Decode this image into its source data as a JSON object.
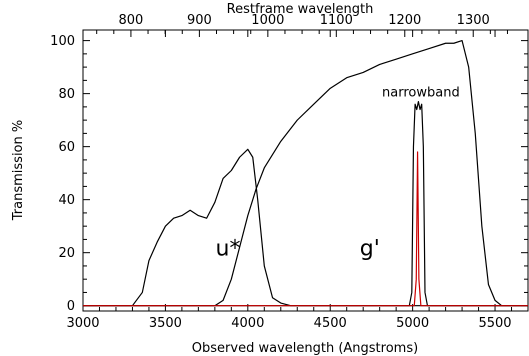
{
  "chart_data": {
    "type": "line",
    "xlabel": "Observed wavelength (Angstroms)",
    "ylabel": "Transmission %",
    "top_axis_label": "Restframe wavelength",
    "xlim": [
      3000,
      5700
    ],
    "ylim": [
      -2,
      104
    ],
    "top_xlim": [
      730,
      1380
    ],
    "x_ticks": [
      3000,
      3500,
      4000,
      4500,
      5000,
      5500
    ],
    "y_ticks": [
      0,
      20,
      40,
      60,
      80,
      100
    ],
    "top_ticks": [
      800,
      900,
      1000,
      1100,
      1200,
      1300
    ],
    "grid": false,
    "annotations": [
      {
        "text": "u*",
        "x": 3880,
        "y": 19
      },
      {
        "text": "g'",
        "x": 4740,
        "y": 19
      },
      {
        "text": "narrowband",
        "x": 5050,
        "y": 79
      }
    ],
    "series": [
      {
        "id": "u",
        "color": "#000000",
        "x": [
          3000,
          3300,
          3360,
          3400,
          3450,
          3500,
          3550,
          3600,
          3650,
          3700,
          3750,
          3800,
          3850,
          3900,
          3950,
          4000,
          4030,
          4060,
          4100,
          4150,
          4200,
          4260,
          4300,
          5700
        ],
        "y": [
          0,
          0,
          5,
          17,
          24,
          30,
          33,
          34,
          36,
          34,
          33,
          39,
          48,
          51,
          56,
          59,
          56,
          40,
          15,
          3,
          1,
          0,
          0,
          0
        ]
      },
      {
        "id": "g",
        "color": "#000000",
        "x": [
          3000,
          3800,
          3850,
          3900,
          3950,
          4000,
          4050,
          4100,
          4200,
          4300,
          4400,
          4500,
          4600,
          4700,
          4800,
          4900,
          5000,
          5100,
          5200,
          5250,
          5300,
          5340,
          5380,
          5420,
          5460,
          5500,
          5540,
          5700
        ],
        "y": [
          0,
          0,
          2,
          10,
          22,
          34,
          44,
          52,
          62,
          70,
          76,
          82,
          86,
          88,
          91,
          93,
          95,
          97,
          99,
          99,
          100,
          90,
          65,
          30,
          8,
          2,
          0,
          0
        ]
      },
      {
        "id": "narrowband",
        "color": "#000000",
        "x": [
          3000,
          4980,
          4995,
          5005,
          5015,
          5025,
          5035,
          5045,
          5055,
          5065,
          5075,
          5090,
          5700
        ],
        "y": [
          0,
          0,
          5,
          60,
          76,
          74,
          77,
          74,
          76,
          60,
          5,
          0,
          0
        ]
      },
      {
        "id": "narrowband-profile",
        "color": "#cc0000",
        "x": [
          3000,
          5010,
          5022,
          5030,
          5038,
          5050,
          5700
        ],
        "y": [
          0,
          0,
          10,
          58,
          10,
          0,
          0
        ]
      }
    ]
  }
}
